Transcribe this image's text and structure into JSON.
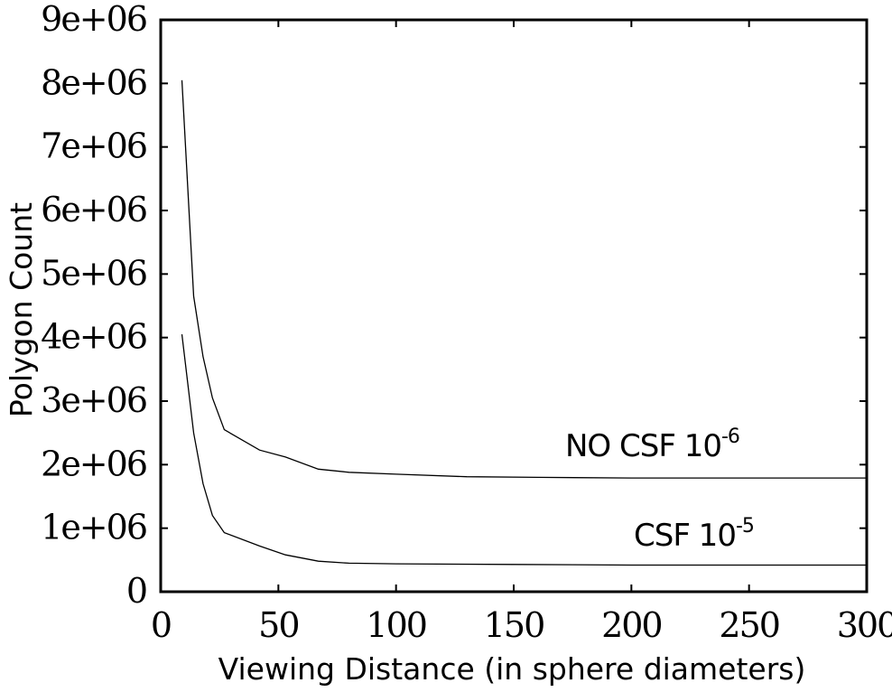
{
  "chart_data": {
    "type": "line",
    "title": "",
    "xlabel": "Viewing Distance (in sphere diameters)",
    "ylabel": "Polygon Count",
    "xlim": [
      0,
      300
    ],
    "ylim": [
      0,
      9000000
    ],
    "x_ticks": [
      0,
      50,
      100,
      150,
      200,
      250,
      300
    ],
    "x_tick_labels": [
      "0",
      "50",
      "100",
      "150",
      "200",
      "250",
      "300"
    ],
    "y_ticks": [
      0,
      1000000,
      2000000,
      3000000,
      4000000,
      5000000,
      6000000,
      7000000,
      8000000,
      9000000
    ],
    "y_tick_labels": [
      "0",
      "1e+06",
      "2e+06",
      "3e+06",
      "4e+06",
      "5e+06",
      "6e+06",
      "7e+06",
      "8e+06",
      "9e+06"
    ],
    "grid": false,
    "legend": "none",
    "line_color": "#000000",
    "series": [
      {
        "name": "NO CSF 10-6",
        "label_text": "NO CSF 10",
        "label_exponent": "-6",
        "x": [
          9,
          14,
          18,
          22,
          27,
          42,
          53,
          67,
          80,
          100,
          130,
          160,
          200,
          250,
          300
        ],
        "y": [
          8050000,
          4650000,
          3700000,
          3050000,
          2550000,
          2230000,
          2120000,
          1930000,
          1880000,
          1850000,
          1810000,
          1800000,
          1790000,
          1790000,
          1790000
        ]
      },
      {
        "name": "CSF 10-5",
        "label_text": "CSF 10",
        "label_exponent": "-5",
        "x": [
          9,
          14,
          18,
          22,
          27,
          42,
          53,
          67,
          80,
          100,
          150,
          200,
          250,
          300
        ],
        "y": [
          4050000,
          2500000,
          1700000,
          1200000,
          930000,
          720000,
          580000,
          480000,
          450000,
          440000,
          430000,
          420000,
          420000,
          420000
        ]
      }
    ]
  }
}
